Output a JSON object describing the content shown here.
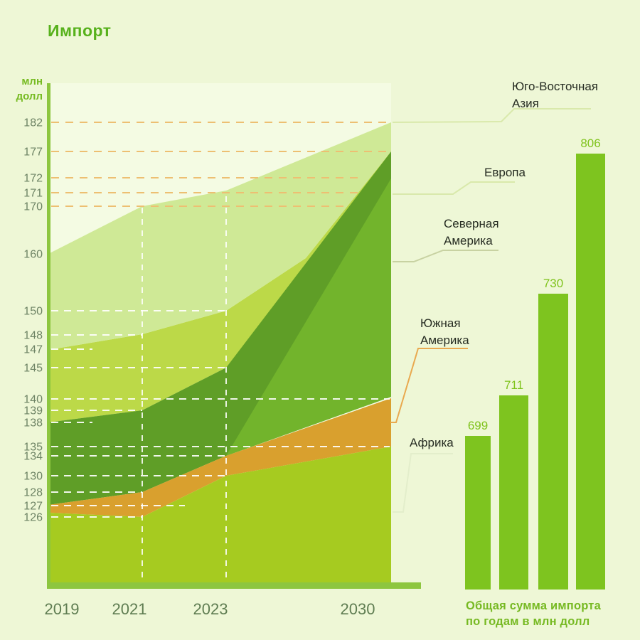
{
  "title": "Импорт",
  "y_axis_unit_lines": [
    "млн",
    "долл"
  ],
  "legend": [
    {
      "id": "sea",
      "label": "Юго-Восточная Азия",
      "lines": [
        "Юго-Восточная",
        "Азия"
      ]
    },
    {
      "id": "europe",
      "label": "Европа",
      "lines": [
        "Европа"
      ]
    },
    {
      "id": "namerica",
      "label": "Северная Америка",
      "lines": [
        "Северная",
        "Америка"
      ]
    },
    {
      "id": "samerica",
      "label": "Южная Америка",
      "lines": [
        "Южная",
        "Америка"
      ]
    },
    {
      "id": "africa",
      "label": "Африка",
      "lines": [
        "Африка"
      ]
    }
  ],
  "bar_caption_lines": [
    "Общая сумма импорта",
    "по годам в млн долл"
  ],
  "colors": {
    "background": "#eef7d6",
    "plot_background": "#f4fbe3",
    "axis_green": "#8dc63f",
    "title_green": "#57b11c",
    "unit_green": "#76bb21",
    "tick_label": "#6e8465",
    "band_southeast_asia": "#cfe996",
    "band_europe": "#bcd948",
    "band_north_america": "#5f9e27",
    "band_north_america_2030": "#72b42c",
    "band_south_america": "#d9a02e",
    "band_africa": "#a6cb20",
    "bar_green": "#7ec41f",
    "dash_orange": "#edbf72",
    "dash_white": "#ffffff",
    "connector_pale": "#d9e9ab",
    "connector_gray_green": "#c8d2a2",
    "connector_orange": "#e9a94f"
  },
  "chart_data": [
    {
      "type": "area",
      "title": "Импорт",
      "ylabel": "млн долл",
      "x": [
        2019,
        2021,
        2023,
        2030
      ],
      "x_labels": [
        "2019",
        "2021",
        "2023",
        "2030"
      ],
      "stacked": true,
      "series_order_bottom_to_top": [
        "Африка",
        "Южная Америка",
        "Северная Америка",
        "Европа",
        "Юго-Восточная Азия"
      ],
      "cumulative_top_by_series": {
        "Африка": [
          126,
          126,
          130,
          135
        ],
        "Южная Америка": [
          127,
          128,
          134,
          140
        ],
        "Северная Америка": [
          138,
          139,
          145,
          172
        ],
        "Европа": [
          147,
          148,
          150,
          177
        ],
        "Юго-Восточная Азия": [
          160,
          170,
          171,
          182
        ]
      },
      "y_ticks": [
        182,
        177,
        172,
        171,
        170,
        160,
        150,
        148,
        147,
        145,
        140,
        139,
        138,
        135,
        134,
        130,
        128,
        127,
        126
      ],
      "grid": "dashed horizontal at each tick, dashed vertical at 2021 and 2023",
      "legend_position": "right"
    },
    {
      "type": "bar",
      "categories": [
        "2019",
        "2021",
        "2023",
        "2030"
      ],
      "values": [
        699,
        711,
        730,
        806
      ],
      "title": "Общая сумма импорта по годам в млн долл"
    }
  ]
}
